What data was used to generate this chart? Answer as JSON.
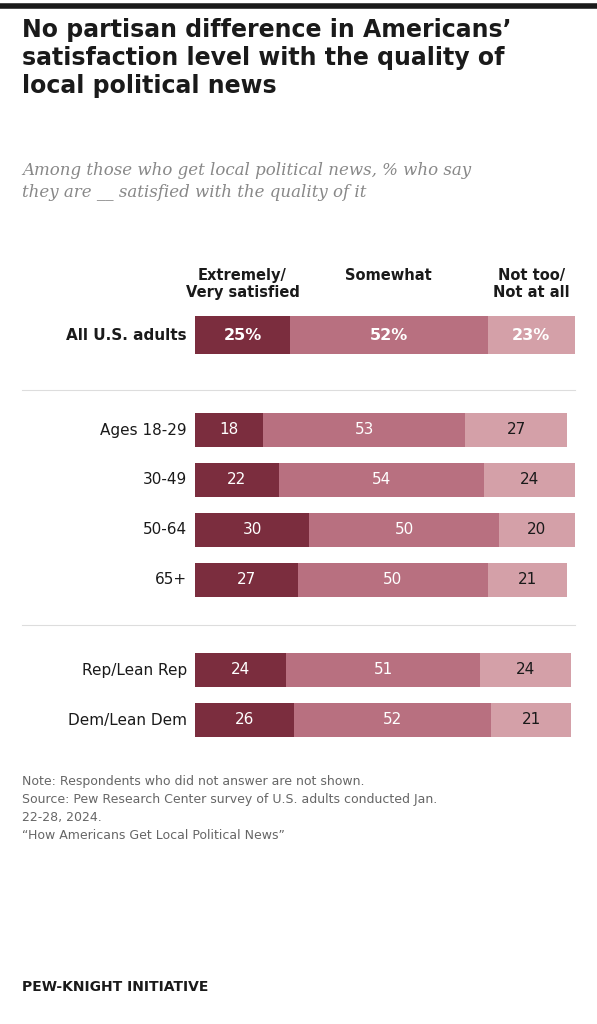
{
  "title": "No partisan difference in Americans’\nsatisfaction level with the quality of\nlocal political news",
  "subtitle": "Among those who get local political news, % who say\nthey are __ satisfied with the quality of it",
  "categories": [
    "All U.S. adults",
    "Ages 18-29",
    "30-49",
    "50-64",
    "65+",
    "Rep/Lean Rep",
    "Dem/Lean Dem"
  ],
  "col1_label": "Extremely/\nVery satisfied",
  "col2_label": "Somewhat",
  "col3_label": "Not too/\nNot at all",
  "values": [
    [
      25,
      52,
      23
    ],
    [
      18,
      53,
      27
    ],
    [
      22,
      54,
      24
    ],
    [
      30,
      50,
      20
    ],
    [
      27,
      50,
      21
    ],
    [
      24,
      51,
      24
    ],
    [
      26,
      52,
      21
    ]
  ],
  "color_dark": "#7b2d3e",
  "color_mid": "#b87080",
  "color_light": "#d4a0a8",
  "note": "Note: Respondents who did not answer are not shown.\nSource: Pew Research Center survey of U.S. adults conducted Jan.\n22-28, 2024.\n“How Americans Get Local Political News”",
  "footer": "PEW-KNIGHT INITIATIVE",
  "bg_color": "#ffffff",
  "title_fontsize": 17,
  "subtitle_fontsize": 12,
  "header_fontsize": 10.5,
  "bar_label_fontsize_all": 11.5,
  "bar_label_fontsize": 11,
  "cat_label_fontsize": 11,
  "note_fontsize": 9,
  "footer_fontsize": 10
}
